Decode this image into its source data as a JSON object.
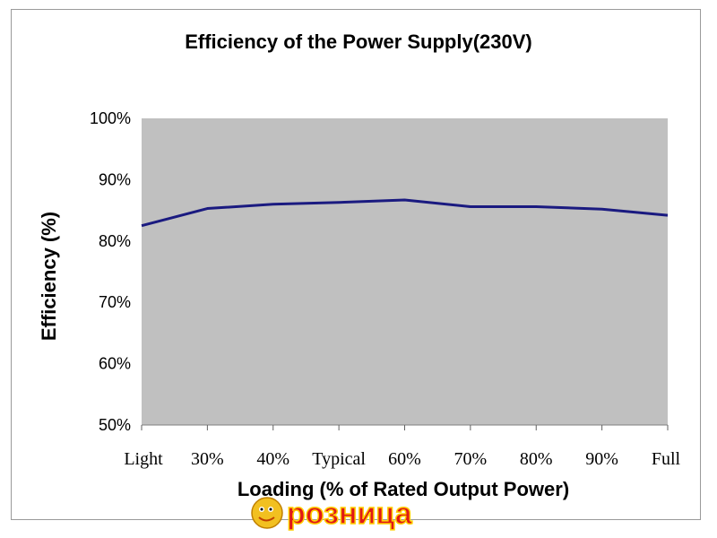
{
  "chart_data": {
    "type": "line",
    "title": "Efficiency of the Power Supply(230V)",
    "xlabel": "Loading (% of Rated Output Power)",
    "ylabel": "Efficiency (%)",
    "categories": [
      "Light",
      "30%",
      "40%",
      "Typical",
      "60%",
      "70%",
      "80%",
      "90%",
      "Full"
    ],
    "series": [
      {
        "values": [
          82.5,
          85.3,
          86.0,
          86.3,
          86.7,
          85.6,
          85.6,
          85.2,
          84.2
        ]
      }
    ],
    "ylim": [
      50,
      100
    ],
    "yticks": [
      "100%",
      "90%",
      "80%",
      "70%",
      "60%",
      "50%"
    ],
    "grid": false,
    "colors": {
      "plot_bg": "#c0c0c0",
      "line": "#1a1a80"
    }
  },
  "watermark": {
    "text": "розница"
  }
}
